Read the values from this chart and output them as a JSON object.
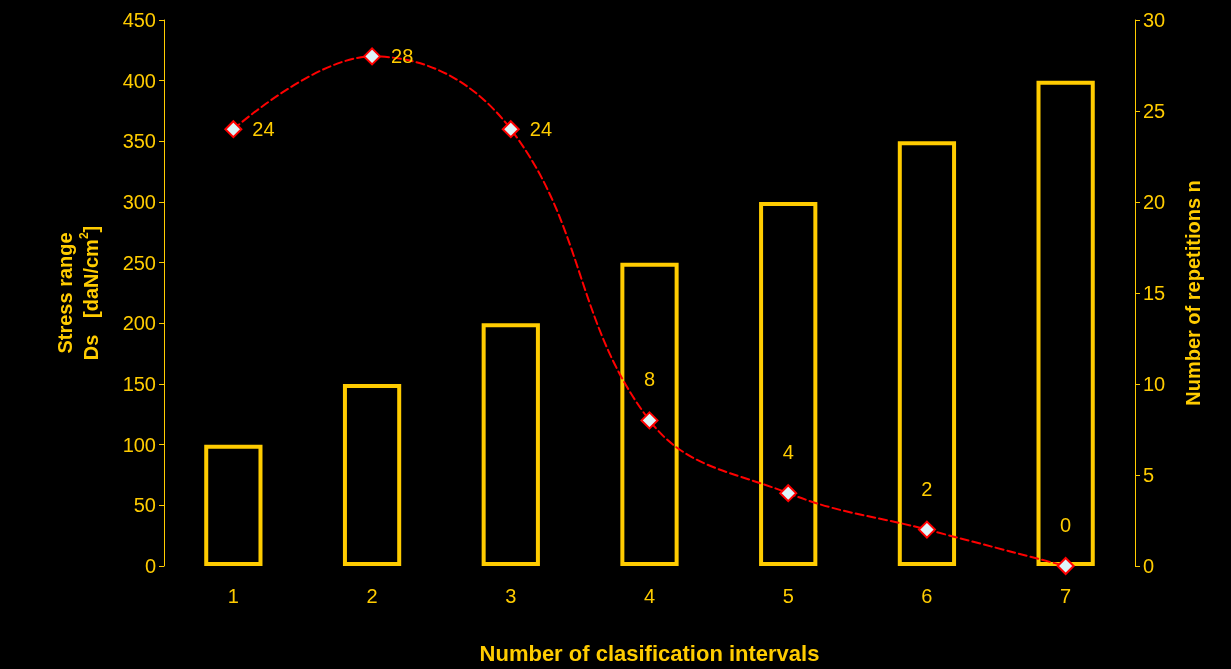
{
  "chart_data": {
    "type": "bar",
    "xlabel": "Number of clasification intervals",
    "ylabel": "Stress range\nDs   [daN/cm$^{2}$]",
    "y2label": "Number of repetitions n",
    "categories": [
      "1",
      "2",
      "3",
      "4",
      "5",
      "6",
      "7"
    ],
    "series": [
      {
        "color": "#ffcc00",
        "values": [
          100,
          150,
          200,
          250,
          300,
          350,
          400
        ]
      },
      {
        "type": "line",
        "axis": "y2",
        "color": "#ff0000",
        "marker": "diamond",
        "line_style": "dashed",
        "data_labels": true,
        "values": [
          24,
          28,
          24,
          8,
          4,
          2,
          0
        ]
      }
    ],
    "ylim": [
      0,
      450
    ],
    "yticks": [
      0,
      50,
      100,
      150,
      200,
      250,
      300,
      350,
      400,
      450
    ],
    "y2lim": [
      0,
      30
    ],
    "y2ticks": [
      0,
      5,
      10,
      15,
      20,
      25,
      30
    ],
    "grid": false
  }
}
